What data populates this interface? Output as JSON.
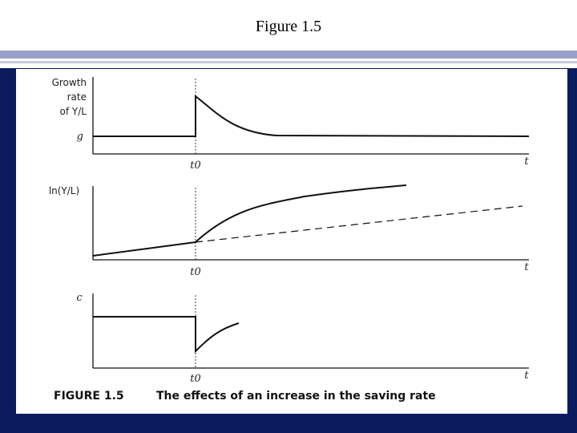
{
  "slide": {
    "title": "Figure 1.5"
  },
  "panels": {
    "growth": {
      "ylabel_line1": "Growth",
      "ylabel_line2": "rate",
      "ylabel_line3": "of Y/L",
      "level_label": "g",
      "t0_label": "t0",
      "t_label": "t"
    },
    "lny": {
      "ylabel": "ln(Y/L)",
      "t0_label": "t0",
      "t_label": "t"
    },
    "consumption": {
      "ylabel": "c",
      "t0_label": "t0",
      "t_label": "t"
    }
  },
  "caption": {
    "prefix": "FIGURE 1.5",
    "text": "The effects of an increase in the saving rate"
  },
  "colors": {
    "frame": "#0c1a5e",
    "rule": "#9aa0c8",
    "curve": "#111111"
  }
}
